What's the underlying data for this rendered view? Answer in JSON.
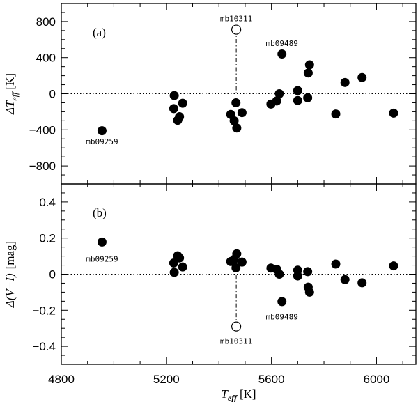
{
  "chart_data": [
    {
      "type": "scatter",
      "panel_label": "(a)",
      "ylabel": "ΔT_eff [K]",
      "ylabel_main": "ΔT",
      "ylabel_sub": "eff",
      "ylabel_unit": "[K]",
      "xlim": [
        4800,
        6150
      ],
      "ylim": [
        -1000,
        1000
      ],
      "x_ticks": [
        4800,
        5200,
        5600,
        6000
      ],
      "y_ticks": [
        -800,
        -400,
        0,
        400,
        800
      ],
      "y_tick_labels": [
        "−800",
        "−400",
        "0",
        "400",
        "800"
      ],
      "reference_line": 0,
      "points": [
        {
          "x": 4955,
          "y": -410
        },
        {
          "x": 5230,
          "y": -20
        },
        {
          "x": 5228,
          "y": -165
        },
        {
          "x": 5243,
          "y": -295
        },
        {
          "x": 5250,
          "y": -255
        },
        {
          "x": 5262,
          "y": -105
        },
        {
          "x": 5445,
          "y": -230
        },
        {
          "x": 5458,
          "y": -300
        },
        {
          "x": 5465,
          "y": -100
        },
        {
          "x": 5468,
          "y": -380
        },
        {
          "x": 5488,
          "y": -210
        },
        {
          "x": 5598,
          "y": -115
        },
        {
          "x": 5620,
          "y": -80
        },
        {
          "x": 5630,
          "y": 0
        },
        {
          "x": 5640,
          "y": 440
        },
        {
          "x": 5700,
          "y": 35
        },
        {
          "x": 5700,
          "y": -75
        },
        {
          "x": 5738,
          "y": -45
        },
        {
          "x": 5740,
          "y": 230
        },
        {
          "x": 5745,
          "y": 320
        },
        {
          "x": 5845,
          "y": -225
        },
        {
          "x": 5880,
          "y": 125
        },
        {
          "x": 5945,
          "y": 180
        },
        {
          "x": 6065,
          "y": -215
        }
      ],
      "outlier": {
        "x": 5466,
        "y": 710,
        "label": "mb10311"
      },
      "annotations": [
        {
          "text": "mb09259",
          "x": 4955,
          "y": -530
        },
        {
          "text": "mb09489",
          "x": 5640,
          "y": 560
        }
      ]
    },
    {
      "type": "scatter",
      "panel_label": "(b)",
      "ylabel": "Δ(V−I) [mag]",
      "ylabel_main": "Δ(V−I)",
      "ylabel_unit": "[mag]",
      "xlabel": "T_eff [K]",
      "xlabel_main": "T",
      "xlabel_sub": "eff",
      "xlabel_unit": "[K]",
      "xlim": [
        4800,
        6150
      ],
      "ylim": [
        -0.5,
        0.5
      ],
      "x_ticks": [
        4800,
        5200,
        5600,
        6000
      ],
      "x_tick_labels": [
        "4800",
        "5200",
        "5600",
        "6000"
      ],
      "y_ticks": [
        -0.4,
        -0.2,
        0,
        0.2,
        0.4
      ],
      "y_tick_labels": [
        "−0.4",
        "−0.2",
        "0",
        "0.2",
        "0.4"
      ],
      "reference_line": 0,
      "points": [
        {
          "x": 4955,
          "y": 0.178
        },
        {
          "x": 5228,
          "y": 0.062
        },
        {
          "x": 5230,
          "y": 0.01
        },
        {
          "x": 5243,
          "y": 0.102
        },
        {
          "x": 5250,
          "y": 0.09
        },
        {
          "x": 5262,
          "y": 0.04
        },
        {
          "x": 5445,
          "y": 0.07
        },
        {
          "x": 5458,
          "y": 0.082
        },
        {
          "x": 5465,
          "y": 0.035
        },
        {
          "x": 5468,
          "y": 0.113
        },
        {
          "x": 5488,
          "y": 0.067
        },
        {
          "x": 5598,
          "y": 0.034
        },
        {
          "x": 5620,
          "y": 0.027
        },
        {
          "x": 5630,
          "y": 0.0
        },
        {
          "x": 5640,
          "y": -0.152
        },
        {
          "x": 5700,
          "y": 0.022
        },
        {
          "x": 5700,
          "y": -0.01
        },
        {
          "x": 5738,
          "y": 0.014
        },
        {
          "x": 5740,
          "y": -0.072
        },
        {
          "x": 5745,
          "y": -0.1
        },
        {
          "x": 5845,
          "y": 0.056
        },
        {
          "x": 5880,
          "y": -0.03
        },
        {
          "x": 5945,
          "y": -0.048
        },
        {
          "x": 6065,
          "y": 0.046
        }
      ],
      "outlier": {
        "x": 5466,
        "y": -0.29,
        "label": "mb10311"
      },
      "annotations": [
        {
          "text": "mb09259",
          "x": 4955,
          "y": 0.085
        },
        {
          "text": "mb09489",
          "x": 5640,
          "y": -0.235
        }
      ]
    }
  ]
}
